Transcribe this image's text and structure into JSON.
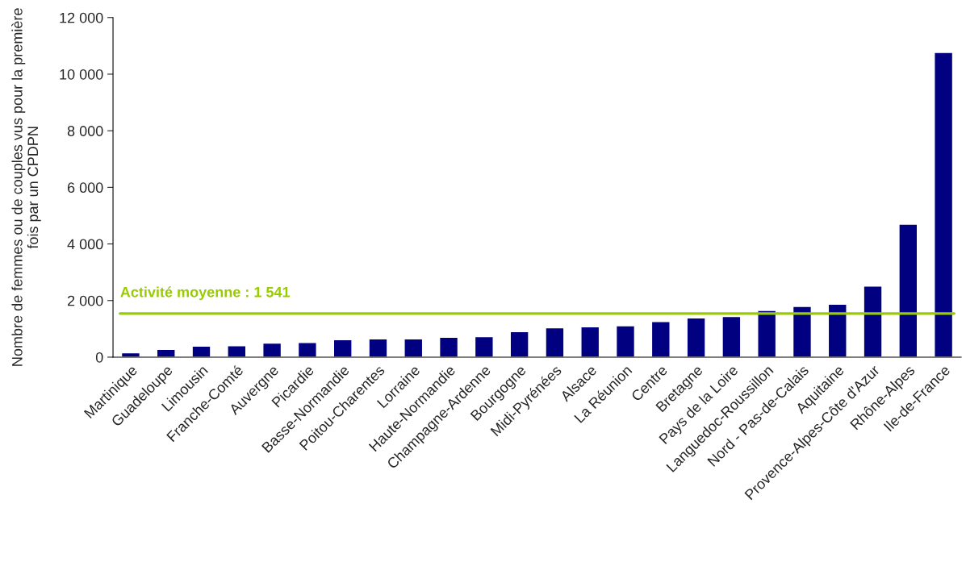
{
  "chart_data": {
    "type": "bar",
    "ylabel": "Nombre de femmes ou de couples vus pour la première fois par un CPDPN",
    "categories": [
      "Martinique",
      "Guadeloupe",
      "Limousin",
      "Franche-Comté",
      "Auvergne",
      "Picardie",
      "Basse-Normandie",
      "Poitou-Charentes",
      "Lorraine",
      "Haute-Normandie",
      "Champagne-Ardenne",
      "Bourgogne",
      "Midi-Pyrénées",
      "Alsace",
      "La Réunion",
      "Centre",
      "Bretagne",
      "Pays de la Loire",
      "Languedoc-Roussillon",
      "Nord - Pas-de-Calais",
      "Aquitaine",
      "Provence-Alpes-Côte d'Azur",
      "Rhône-Alpes",
      "Ile-de-France"
    ],
    "values": [
      155,
      275,
      390,
      400,
      495,
      515,
      620,
      645,
      645,
      705,
      725,
      900,
      1040,
      1070,
      1110,
      1255,
      1385,
      1435,
      1650,
      1795,
      1870,
      2515,
      4700,
      10770
    ],
    "color": "#000080",
    "ylim": [
      0,
      12000
    ],
    "yticks": [
      0,
      {
        "value": 2000,
        "label": "2 000"
      },
      {
        "value": 4000,
        "label": "4 000"
      },
      {
        "value": 6000,
        "label": "6 000"
      },
      {
        "value": 8000,
        "label": "8 000"
      },
      {
        "value": 10000,
        "label": "10 000"
      },
      {
        "value": 12000,
        "label": "12 000"
      }
    ],
    "ref_lines": [
      {
        "axis": "y",
        "value": 1541,
        "label": "Activité moyenne : 1 541",
        "color": "#99cc00"
      }
    ],
    "grid": false,
    "legend": false
  }
}
